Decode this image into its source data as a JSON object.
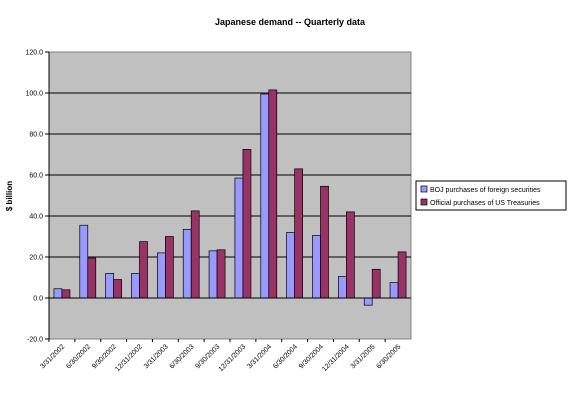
{
  "chart_data": {
    "type": "bar",
    "title": "Japanese demand -- Quarterly data",
    "xlabel": "",
    "ylabel": "$ billion",
    "ylim": [
      -20,
      120
    ],
    "ytick_step": 20,
    "ytick_labels": [
      "-20.0",
      "0.0",
      "20.0",
      "40.0",
      "60.0",
      "80.0",
      "100.0",
      "120.0"
    ],
    "grid": "horizontal",
    "legend_position": "right",
    "categories": [
      "3/31/2002",
      "6/30/2002",
      "9/30/2002",
      "12/31/2002",
      "3/31/2003",
      "6/30/2003",
      "9/30/2003",
      "12/31/2003",
      "3/31/2004",
      "6/30/2004",
      "9/30/2004",
      "12/31/2004",
      "3/31/2005",
      "6/30/2005"
    ],
    "series": [
      {
        "name": "BOJ purchases of foreign securities",
        "color": "#9999ff",
        "values": [
          4.5,
          35.5,
          12,
          12,
          22,
          33.5,
          23,
          58.5,
          99.5,
          32,
          30.5,
          10.5,
          -3.5,
          7.5
        ]
      },
      {
        "name": "Official purchases of US Treasuries",
        "color": "#993366",
        "values": [
          4,
          19.5,
          9,
          27.5,
          30,
          42.5,
          23.5,
          72.5,
          101.5,
          63,
          54.5,
          42,
          14,
          22.5
        ]
      }
    ],
    "plot_background": "#c0c0c0"
  }
}
